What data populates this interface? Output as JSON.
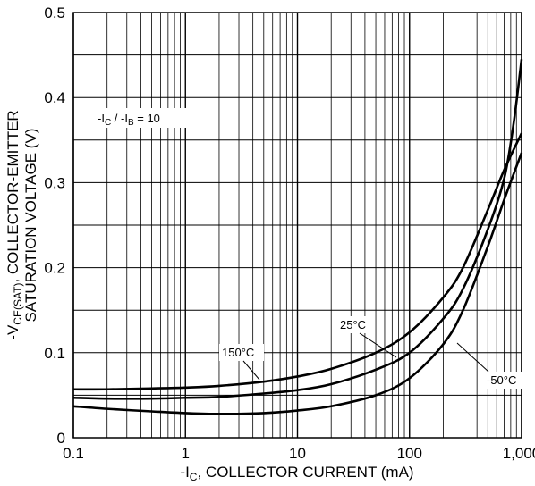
{
  "chart_data": {
    "type": "line",
    "x_scale": "log",
    "xlim": [
      0.1,
      1000
    ],
    "ylim": [
      0,
      0.5
    ],
    "grid": true,
    "x_ticks": [
      "0.1",
      "1",
      "10",
      "100",
      "1,000"
    ],
    "y_ticks": [
      "0",
      "0.1",
      "0.2",
      "0.3",
      "0.4",
      "0.5"
    ],
    "xlabel_main": "-I",
    "xlabel_sub": "C",
    "xlabel_rest": ", COLLECTOR CURRENT (mA)",
    "ylabel_line1_a": "-V",
    "ylabel_line1_sub": "CE(SAT)",
    "ylabel_line1_b": ", COLLECTOR-EMITTER",
    "ylabel_line2": "SATURATION VOLTAGE (V)",
    "condition": {
      "a": "-I",
      "a_sub": "C",
      "mid": " / -I",
      "b_sub": "B",
      "rest": " = 10"
    },
    "series": [
      {
        "name": "150°C",
        "x": [
          0.1,
          0.2,
          0.5,
          1,
          2,
          5,
          10,
          20,
          50,
          100,
          200,
          300,
          500,
          700,
          1000
        ],
        "y": [
          0.057,
          0.057,
          0.058,
          0.059,
          0.061,
          0.066,
          0.072,
          0.081,
          0.1,
          0.124,
          0.165,
          0.2,
          0.268,
          0.315,
          0.358
        ]
      },
      {
        "name": "25°C",
        "x": [
          0.1,
          0.2,
          0.5,
          1,
          2,
          5,
          10,
          20,
          50,
          100,
          200,
          300,
          500,
          700,
          850,
          1000
        ],
        "y": [
          0.047,
          0.046,
          0.046,
          0.047,
          0.048,
          0.052,
          0.056,
          0.063,
          0.08,
          0.1,
          0.14,
          0.175,
          0.245,
          0.305,
          0.37,
          0.445
        ]
      },
      {
        "name": "-50°C",
        "x": [
          0.1,
          0.2,
          0.5,
          1,
          2,
          5,
          10,
          20,
          50,
          100,
          200,
          300,
          500,
          700,
          1000
        ],
        "y": [
          0.037,
          0.034,
          0.031,
          0.029,
          0.028,
          0.029,
          0.032,
          0.037,
          0.05,
          0.07,
          0.11,
          0.15,
          0.225,
          0.28,
          0.335
        ]
      }
    ]
  }
}
